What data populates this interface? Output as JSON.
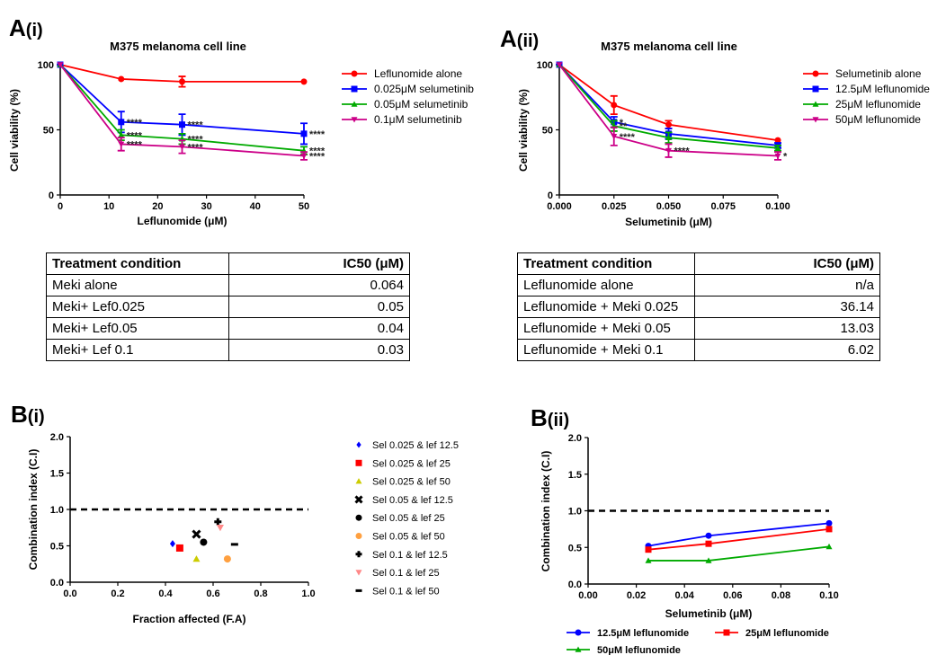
{
  "colors": {
    "red": "#ff0000",
    "blue": "#0000ff",
    "green": "#00aa00",
    "magenta": "#cc0088",
    "orange": "#ffa040",
    "salmon": "#ff8888",
    "olive": "#cccc00",
    "black": "#000000"
  },
  "panels": {
    "ai": {
      "label": "A",
      "sub": "(i)"
    },
    "aii": {
      "label": "A",
      "sub": "(ii)"
    },
    "bi": {
      "label": "B",
      "sub": "(i)"
    },
    "bii": {
      "label": "B",
      "sub": "(ii)"
    }
  },
  "chart_data": [
    {
      "id": "Ai",
      "type": "line",
      "title": "M375 melanoma cell line",
      "xlabel": "Leflunomide (μM)",
      "ylabel": "Cell viability (%)",
      "xlim": [
        0,
        50
      ],
      "ylim": [
        0,
        100
      ],
      "xticks": [
        "0",
        "10",
        "20",
        "30",
        "40",
        "50"
      ],
      "yticks": [
        "0",
        "50",
        "100"
      ],
      "series": [
        {
          "name": "Leflunomide alone",
          "color": "red",
          "marker": "circle",
          "x": [
            0,
            12.5,
            25,
            50
          ],
          "y": [
            100,
            89,
            87,
            87
          ],
          "err": [
            0,
            0,
            4,
            0
          ],
          "sig": [
            "",
            "",
            "",
            ""
          ]
        },
        {
          "name": "0.025μM selumetinib",
          "color": "blue",
          "marker": "square",
          "x": [
            0,
            12.5,
            25,
            50
          ],
          "y": [
            100,
            56,
            54,
            47
          ],
          "err": [
            0,
            8,
            8,
            8
          ],
          "sig": [
            "",
            "****",
            "****",
            "****"
          ]
        },
        {
          "name": "0.05μM selumetinib",
          "color": "green",
          "marker": "triangle",
          "x": [
            0,
            12.5,
            25,
            50
          ],
          "y": [
            100,
            46,
            43,
            34
          ],
          "err": [
            0,
            4,
            4,
            3
          ],
          "sig": [
            "",
            "****",
            "****",
            "****"
          ]
        },
        {
          "name": "0.1μM selumetinib",
          "color": "magenta",
          "marker": "triangle-down",
          "x": [
            0,
            12.5,
            25,
            50
          ],
          "y": [
            100,
            39,
            37,
            30
          ],
          "err": [
            0,
            5,
            5,
            3
          ],
          "sig": [
            "",
            "****",
            "****",
            "****"
          ]
        }
      ]
    },
    {
      "id": "Aii",
      "type": "line",
      "title": "M375 melanoma cell line",
      "xlabel": "Selumetinib (μM)",
      "ylabel": "Cell viability (%)",
      "xlim": [
        0,
        0.1
      ],
      "ylim": [
        0,
        100
      ],
      "xticks": [
        "0.000",
        "0.025",
        "0.050",
        "0.075",
        "0.100"
      ],
      "yticks": [
        "0",
        "50",
        "100"
      ],
      "series": [
        {
          "name": "Selumetinib alone",
          "color": "red",
          "marker": "circle",
          "x": [
            0,
            0.025,
            0.05,
            0.1
          ],
          "y": [
            100,
            69,
            54,
            42
          ],
          "err": [
            0,
            7,
            3,
            0
          ],
          "sig": [
            "",
            "",
            "",
            ""
          ]
        },
        {
          "name": "12.5μM leflunomide",
          "color": "blue",
          "marker": "square",
          "x": [
            0,
            0.025,
            0.05,
            0.1
          ],
          "y": [
            100,
            56,
            47,
            38
          ],
          "err": [
            0,
            4,
            4,
            2
          ],
          "sig": [
            "",
            "*",
            "",
            ""
          ]
        },
        {
          "name": "25μM leflunomide",
          "color": "green",
          "marker": "triangle",
          "x": [
            0,
            0.025,
            0.05,
            0.1
          ],
          "y": [
            100,
            53,
            44,
            36
          ],
          "err": [
            0,
            4,
            4,
            2
          ],
          "sig": [
            "",
            "**",
            "",
            ""
          ]
        },
        {
          "name": "50μM leflunomide",
          "color": "magenta",
          "marker": "triangle-down",
          "x": [
            0,
            0.025,
            0.05,
            0.1
          ],
          "y": [
            100,
            45,
            34,
            30
          ],
          "err": [
            0,
            7,
            5,
            3
          ],
          "sig": [
            "",
            "****",
            "****",
            "*"
          ]
        }
      ]
    },
    {
      "id": "Bi",
      "type": "scatter",
      "title": "",
      "xlabel": "Fraction affected (F.A)",
      "ylabel": "Combination index (C.I)",
      "xlim": [
        0,
        1
      ],
      "ylim": [
        0,
        2
      ],
      "xticks": [
        "0.0",
        "0.2",
        "0.4",
        "0.6",
        "0.8",
        "1.0"
      ],
      "yticks": [
        "0.0",
        "0.5",
        "1.0",
        "1.5",
        "2.0"
      ],
      "refline": 1.0,
      "series": [
        {
          "name": "Sel 0.025 & lef 12.5",
          "color": "blue",
          "marker": "diamond",
          "x": [
            0.43
          ],
          "y": [
            0.53
          ]
        },
        {
          "name": "Sel 0.025 & lef 25",
          "color": "red",
          "marker": "square",
          "x": [
            0.46
          ],
          "y": [
            0.47
          ]
        },
        {
          "name": "Sel 0.025 & lef 50",
          "color": "olive",
          "marker": "triangle",
          "x": [
            0.53
          ],
          "y": [
            0.32
          ]
        },
        {
          "name": "Sel 0.05 & lef 12.5",
          "color": "black",
          "marker": "x",
          "x": [
            0.53
          ],
          "y": [
            0.66
          ]
        },
        {
          "name": "Sel 0.05 & lef 25",
          "color": "black",
          "marker": "circle",
          "x": [
            0.56
          ],
          "y": [
            0.55
          ]
        },
        {
          "name": "Sel 0.05 & lef 50",
          "color": "orange",
          "marker": "circle",
          "x": [
            0.66
          ],
          "y": [
            0.32
          ]
        },
        {
          "name": "Sel 0.1 & lef 12.5",
          "color": "black",
          "marker": "plus",
          "x": [
            0.62
          ],
          "y": [
            0.83
          ]
        },
        {
          "name": "Sel 0.1 & lef 25",
          "color": "salmon",
          "marker": "triangle-down",
          "x": [
            0.63
          ],
          "y": [
            0.75
          ]
        },
        {
          "name": "Sel 0.1 & lef 50",
          "color": "black",
          "marker": "dash",
          "x": [
            0.69
          ],
          "y": [
            0.52
          ]
        }
      ]
    },
    {
      "id": "Bii",
      "type": "line",
      "title": "",
      "xlabel": "Selumetinib (μM)",
      "ylabel": "Combination index (C.I)",
      "xlim": [
        0,
        0.1
      ],
      "ylim": [
        0,
        2
      ],
      "xticks": [
        "0.00",
        "0.02",
        "0.04",
        "0.06",
        "0.08",
        "0.10"
      ],
      "yticks": [
        "0.0",
        "0.5",
        "1.0",
        "1.5",
        "2.0"
      ],
      "refline": 1.0,
      "series": [
        {
          "name": "12.5μM leflunomide",
          "color": "blue",
          "marker": "circle",
          "x": [
            0.025,
            0.05,
            0.1
          ],
          "y": [
            0.52,
            0.66,
            0.83
          ]
        },
        {
          "name": "25μM leflunomide",
          "color": "red",
          "marker": "square",
          "x": [
            0.025,
            0.05,
            0.1
          ],
          "y": [
            0.47,
            0.55,
            0.75
          ]
        },
        {
          "name": "50μM leflunomide",
          "color": "green",
          "marker": "triangle",
          "x": [
            0.025,
            0.05,
            0.1
          ],
          "y": [
            0.32,
            0.32,
            0.51
          ]
        }
      ]
    }
  ],
  "tables": {
    "left": {
      "header": [
        "Treatment condition",
        "IC50 (μM)"
      ],
      "rows": [
        [
          "Meki alone",
          "0.064"
        ],
        [
          "Meki+ Lef0.025",
          "0.05"
        ],
        [
          "Meki+ Lef0.05",
          "0.04"
        ],
        [
          "Meki+ Lef 0.1",
          "0.03"
        ]
      ]
    },
    "right": {
      "header": [
        "Treatment condition",
        "IC50 (μM)"
      ],
      "rows": [
        [
          "Leflunomide alone",
          "n/a"
        ],
        [
          "Leflunomide + Meki 0.025",
          "36.14"
        ],
        [
          "Leflunomide + Meki 0.05",
          "13.03"
        ],
        [
          "Leflunomide + Meki 0.1",
          "6.02"
        ]
      ]
    }
  }
}
